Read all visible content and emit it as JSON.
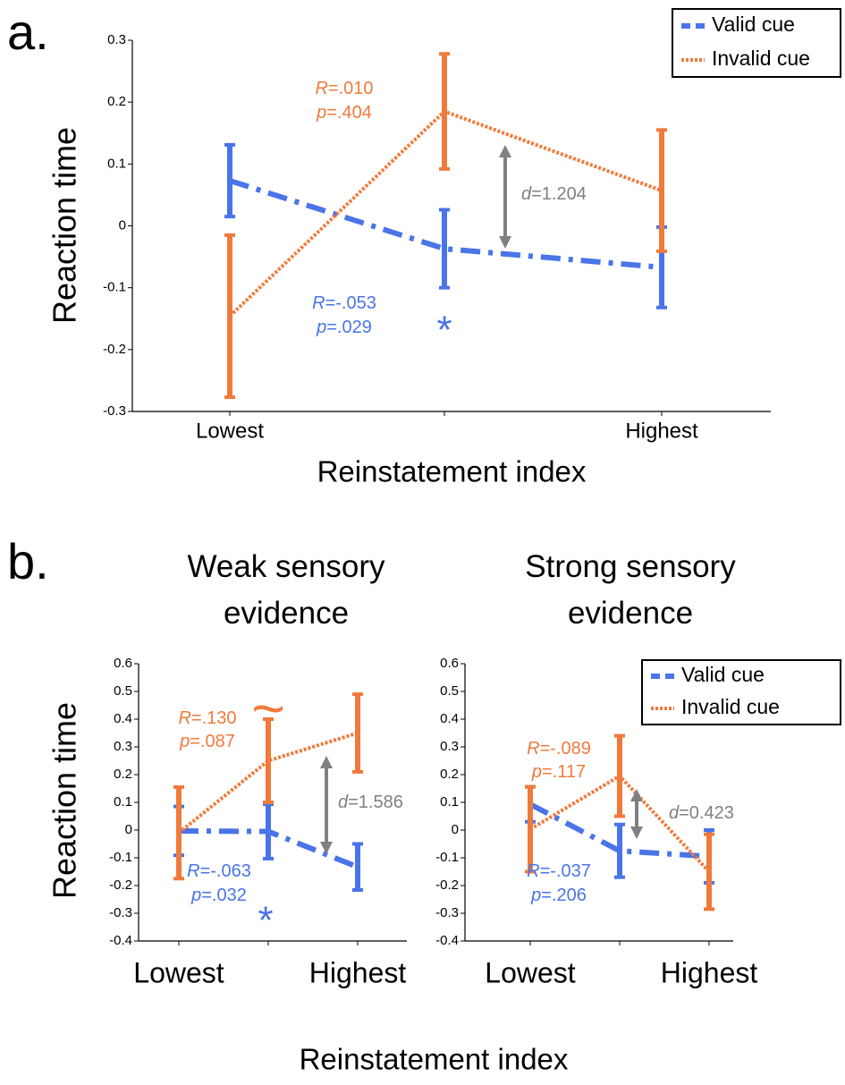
{
  "panel_labels": [
    "a.",
    "b."
  ],
  "shared_xlabel": "Reinstatement index",
  "chart_data": [
    {
      "type": "line",
      "ylabel": "Reaction time",
      "xlabel": "Reinstatement index",
      "categories": [
        "Lowest",
        null,
        "Highest"
      ],
      "ylim": [
        -0.3,
        0.3
      ],
      "yticks": [
        -0.3,
        -0.2,
        -0.1,
        0,
        0.1,
        0.2,
        0.3
      ],
      "legend": "upper right",
      "series": [
        {
          "name": "Valid cue",
          "color": "#4a74e8",
          "style": "dashdot",
          "values": [
            0.073,
            -0.037,
            -0.067
          ],
          "errors": [
            0.058,
            0.063,
            0.065
          ]
        },
        {
          "name": "Invalid cue",
          "color": "#f07a3c",
          "style": "dotted",
          "values": [
            -0.146,
            0.185,
            0.057
          ],
          "errors": [
            0.131,
            0.093,
            0.098
          ]
        }
      ],
      "annotations": [
        {
          "text": "R=.010",
          "color": "#f07a3c"
        },
        {
          "text": "p=.404",
          "color": "#f07a3c"
        },
        {
          "text": "R=-.053",
          "color": "#4a74e8"
        },
        {
          "text": "p=.029",
          "color": "#4a74e8"
        },
        {
          "text": "*",
          "color": "#4a74e8"
        },
        {
          "text": "d=1.204",
          "color": "#808080"
        }
      ]
    },
    {
      "type": "line",
      "title": "Weak sensory evidence",
      "ylabel": "Reaction time",
      "categories": [
        "Lowest",
        null,
        "Highest"
      ],
      "ylim": [
        -0.4,
        0.6
      ],
      "yticks": [
        -0.4,
        -0.3,
        -0.2,
        -0.1,
        0,
        0.1,
        0.2,
        0.3,
        0.4,
        0.5,
        0.6
      ],
      "series": [
        {
          "name": "Valid cue",
          "color": "#4a74e8",
          "style": "dashdot",
          "values": [
            -0.003,
            -0.005,
            -0.133
          ],
          "errors": [
            0.088,
            0.098,
            0.083
          ]
        },
        {
          "name": "Invalid cue",
          "color": "#f07a3c",
          "style": "dotted",
          "values": [
            -0.01,
            0.25,
            0.35
          ],
          "errors": [
            0.165,
            0.15,
            0.14
          ]
        }
      ],
      "annotations": [
        {
          "text": "R=.130",
          "color": "#f07a3c"
        },
        {
          "text": "p=.087",
          "color": "#f07a3c"
        },
        {
          "text": "~",
          "color": "#f07a3c"
        },
        {
          "text": "R=-.063",
          "color": "#4a74e8"
        },
        {
          "text": "p=.032",
          "color": "#4a74e8"
        },
        {
          "text": "*",
          "color": "#4a74e8"
        },
        {
          "text": "d=1.586",
          "color": "#808080"
        }
      ]
    },
    {
      "type": "line",
      "title": "Strong sensory evidence",
      "categories": [
        "Lowest",
        null,
        "Highest"
      ],
      "ylim": [
        -0.4,
        0.6
      ],
      "yticks": [
        -0.4,
        -0.3,
        -0.2,
        -0.1,
        0,
        0.1,
        0.2,
        0.3,
        0.4,
        0.5,
        0.6
      ],
      "legend": "upper right",
      "series": [
        {
          "name": "Valid cue",
          "color": "#4a74e8",
          "style": "dashdot",
          "values": [
            0.093,
            -0.075,
            -0.095
          ],
          "errors": [
            0.063,
            0.095,
            0.095
          ]
        },
        {
          "name": "Invalid cue",
          "color": "#f07a3c",
          "style": "dotted",
          "values": [
            0.003,
            0.195,
            -0.15
          ],
          "errors": [
            0.153,
            0.145,
            0.135
          ]
        }
      ],
      "annotations": [
        {
          "text": "R=-.089",
          "color": "#f07a3c"
        },
        {
          "text": "p=.117",
          "color": "#f07a3c"
        },
        {
          "text": "R=-.037",
          "color": "#4a74e8"
        },
        {
          "text": "p=.206",
          "color": "#4a74e8"
        },
        {
          "text": "d=0.423",
          "color": "#808080"
        }
      ]
    }
  ]
}
